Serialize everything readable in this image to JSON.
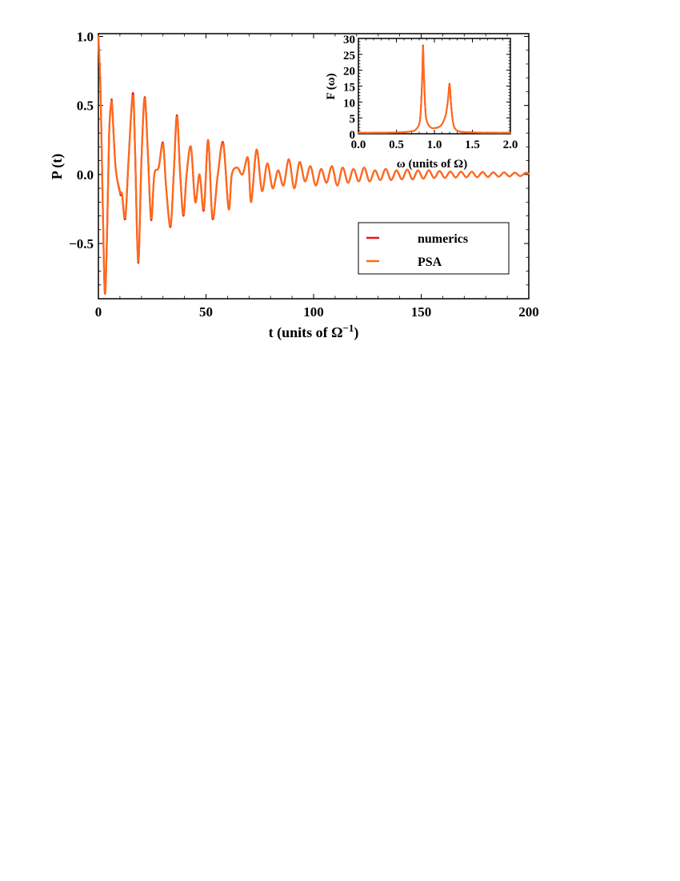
{
  "chart_data": [
    {
      "id": "main",
      "type": "line",
      "title": "",
      "xlabel": "t (units of Ω",
      "xlabel_superscript": "−1",
      "xlabel_suffix": ")",
      "ylabel": "P (t)",
      "xlim": [
        0,
        200
      ],
      "ylim": [
        -0.9,
        1.02
      ],
      "xticks": [
        0,
        50,
        100,
        150,
        200
      ],
      "xtick_labels": [
        "0",
        "50",
        "100",
        "150",
        "200"
      ],
      "yticks": [
        -0.5,
        0.0,
        0.5,
        1.0
      ],
      "ytick_labels": [
        "−0.5",
        "0.0",
        "0.5",
        "1.0"
      ],
      "grid": false,
      "legend_position": "lower-right",
      "series": [
        {
          "name": "numerics",
          "color": "#e8141c",
          "x": [
            0,
            1,
            2,
            3,
            4,
            5,
            6,
            6.5,
            8,
            10,
            10.5,
            11,
            12.5,
            14,
            16,
            17,
            18.5,
            20,
            21.5,
            23,
            24.5,
            26,
            28,
            30,
            31.5,
            33.5,
            35,
            36.5,
            38,
            39.5,
            41,
            43,
            45,
            47,
            49,
            51,
            53,
            55.5,
            58,
            60.5,
            62,
            64.5,
            67,
            69.5,
            71,
            73.5,
            76,
            78.5,
            81,
            83.5,
            86,
            88.5,
            91,
            93.5,
            96,
            98.5,
            101,
            103.5,
            106,
            108.5,
            111,
            113.5,
            116,
            118.5,
            121,
            123.5,
            126,
            128.5,
            131,
            133.5,
            136,
            138.5,
            141,
            143.5,
            146,
            148.5,
            151,
            153.5,
            156,
            158.5,
            161,
            163.5,
            166,
            168.5,
            171,
            173.5,
            176,
            178.5,
            181,
            183.5,
            186,
            188.5,
            191,
            193.5,
            196,
            198.5,
            200
          ],
          "values": [
            1.0,
            0.6,
            -0.2,
            -0.86,
            -0.45,
            0.3,
            0.53,
            0.47,
            0.05,
            -0.13,
            -0.15,
            -0.15,
            -0.32,
            0.1,
            0.59,
            0.2,
            -0.64,
            0.1,
            0.56,
            0.15,
            -0.33,
            0.0,
            0.05,
            0.23,
            -0.1,
            -0.38,
            0.0,
            0.43,
            0.0,
            -0.3,
            0.0,
            0.2,
            -0.2,
            0.0,
            -0.26,
            0.25,
            -0.32,
            0.0,
            0.23,
            -0.25,
            0.0,
            0.05,
            0.0,
            0.12,
            -0.2,
            0.18,
            -0.12,
            0.08,
            -0.1,
            0.03,
            -0.08,
            0.11,
            -0.1,
            0.09,
            -0.05,
            0.06,
            -0.08,
            0.04,
            -0.06,
            0.06,
            -0.08,
            0.05,
            -0.06,
            0.04,
            -0.05,
            0.05,
            -0.05,
            0.03,
            -0.04,
            0.04,
            -0.04,
            0.03,
            -0.035,
            0.035,
            -0.035,
            0.03,
            -0.03,
            0.03,
            -0.025,
            0.025,
            -0.025,
            0.022,
            -0.022,
            0.02,
            -0.02,
            0.02,
            -0.02,
            0.018,
            -0.018,
            0.016,
            -0.016,
            0.015,
            -0.014,
            0.013,
            -0.012,
            0.012,
            0.005
          ]
        },
        {
          "name": "PSA",
          "color": "#ff6a1a",
          "x": [
            0,
            1,
            2,
            3,
            4,
            5,
            6,
            6.5,
            8,
            10,
            10.5,
            11,
            12.5,
            14,
            16,
            17,
            18.5,
            20,
            21.5,
            23,
            24.5,
            26,
            28,
            30,
            31.5,
            33.5,
            35,
            36.5,
            38,
            39.5,
            41,
            43,
            45,
            47,
            49,
            51,
            53,
            55.5,
            58,
            60.5,
            62,
            64.5,
            67,
            69.5,
            71,
            73.5,
            76,
            78.5,
            81,
            83.5,
            86,
            88.5,
            91,
            93.5,
            96,
            98.5,
            101,
            103.5,
            106,
            108.5,
            111,
            113.5,
            116,
            118.5,
            121,
            123.5,
            126,
            128.5,
            131,
            133.5,
            136,
            138.5,
            141,
            143.5,
            146,
            148.5,
            151,
            153.5,
            156,
            158.5,
            161,
            163.5,
            166,
            168.5,
            171,
            173.5,
            176,
            178.5,
            181,
            183.5,
            186,
            188.5,
            191,
            193.5,
            196,
            198.5,
            200
          ],
          "values": [
            1.0,
            0.6,
            -0.2,
            -0.86,
            -0.45,
            0.3,
            0.52,
            0.46,
            0.05,
            -0.12,
            -0.14,
            -0.14,
            -0.31,
            0.1,
            0.57,
            0.2,
            -0.63,
            0.1,
            0.55,
            0.15,
            -0.32,
            0.0,
            0.05,
            0.22,
            -0.1,
            -0.37,
            0.0,
            0.42,
            0.0,
            -0.29,
            0.0,
            0.2,
            -0.2,
            0.0,
            -0.25,
            0.25,
            -0.31,
            0.0,
            0.22,
            -0.25,
            0.0,
            0.05,
            0.0,
            0.12,
            -0.2,
            0.18,
            -0.12,
            0.08,
            -0.1,
            0.03,
            -0.08,
            0.11,
            -0.1,
            0.09,
            -0.05,
            0.06,
            -0.08,
            0.04,
            -0.06,
            0.06,
            -0.08,
            0.05,
            -0.06,
            0.04,
            -0.05,
            0.05,
            -0.05,
            0.03,
            -0.04,
            0.04,
            -0.04,
            0.03,
            -0.035,
            0.035,
            -0.035,
            0.03,
            -0.03,
            0.03,
            -0.025,
            0.025,
            -0.025,
            0.022,
            -0.022,
            0.02,
            -0.02,
            0.02,
            -0.02,
            0.018,
            -0.018,
            0.016,
            -0.016,
            0.015,
            -0.014,
            0.013,
            -0.012,
            0.012,
            0.005
          ]
        }
      ]
    },
    {
      "id": "inset",
      "type": "line",
      "title": "",
      "xlabel": "ω (units of Ω)",
      "ylabel": "F (ω)",
      "xlim": [
        0,
        2.0
      ],
      "ylim": [
        0,
        30
      ],
      "xticks": [
        0.0,
        0.5,
        1.0,
        1.5,
        2.0
      ],
      "xtick_labels": [
        "0.0",
        "0.5",
        "1.0",
        "1.5",
        "2.0"
      ],
      "yticks": [
        0,
        5,
        10,
        15,
        20,
        25,
        30
      ],
      "ytick_labels": [
        "0",
        "5",
        "10",
        "15",
        "20",
        "25",
        "30"
      ],
      "grid": false,
      "series": [
        {
          "name": "numerics",
          "color": "#e8141c",
          "x": [
            0.0,
            0.2,
            0.4,
            0.6,
            0.7,
            0.75,
            0.8,
            0.82,
            0.84,
            0.85,
            0.86,
            0.88,
            0.9,
            0.95,
            1.0,
            1.05,
            1.1,
            1.15,
            1.18,
            1.2,
            1.22,
            1.25,
            1.3,
            1.4,
            1.6,
            1.8,
            2.0
          ],
          "values": [
            0.3,
            0.3,
            0.35,
            0.5,
            0.8,
            1.2,
            3.0,
            7.0,
            18.0,
            27.8,
            20.0,
            8.0,
            4.0,
            2.0,
            1.8,
            2.0,
            3.0,
            6.0,
            11.0,
            15.7,
            9.0,
            3.0,
            1.0,
            0.5,
            0.35,
            0.3,
            0.3
          ]
        },
        {
          "name": "PSA",
          "color": "#ff6a1a",
          "x": [
            0.0,
            0.2,
            0.4,
            0.6,
            0.7,
            0.75,
            0.8,
            0.82,
            0.84,
            0.85,
            0.86,
            0.88,
            0.9,
            0.95,
            1.0,
            1.05,
            1.1,
            1.15,
            1.18,
            1.2,
            1.22,
            1.25,
            1.3,
            1.4,
            1.6,
            1.8,
            2.0
          ],
          "values": [
            0.3,
            0.3,
            0.35,
            0.5,
            0.8,
            1.2,
            3.0,
            7.0,
            18.0,
            27.5,
            20.0,
            8.0,
            4.0,
            2.0,
            1.8,
            2.0,
            3.0,
            6.0,
            11.0,
            15.5,
            9.0,
            3.0,
            1.0,
            0.5,
            0.35,
            0.3,
            0.3
          ]
        }
      ]
    }
  ],
  "legend": {
    "items": [
      {
        "label": "numerics",
        "color": "#e8141c"
      },
      {
        "label": "PSA",
        "color": "#ff6a1a"
      }
    ]
  }
}
